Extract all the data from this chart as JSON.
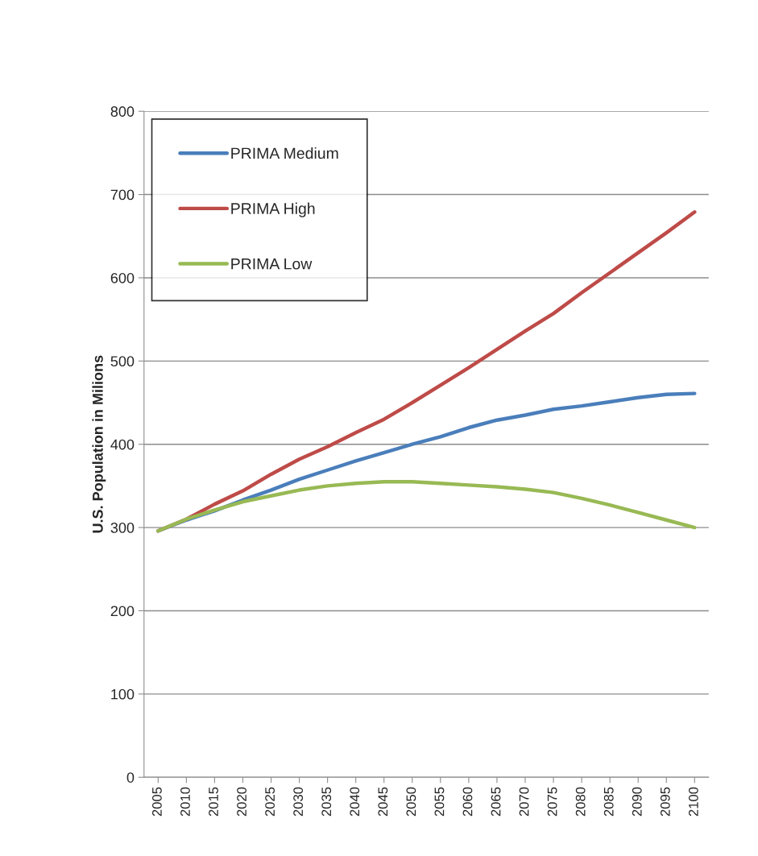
{
  "chart_data": {
    "type": "line",
    "ylabel": "U.S. Population in Milions",
    "categories": [
      "2005",
      "2010",
      "2015",
      "2020",
      "2025",
      "2030",
      "2035",
      "2040",
      "2045",
      "2050",
      "2055",
      "2060",
      "2065",
      "2070",
      "2075",
      "2080",
      "2085",
      "2090",
      "2095",
      "2100"
    ],
    "series": [
      {
        "name": "PRIMA Medium",
        "color": "#4a7ebb",
        "values": [
          296,
          309,
          320,
          333,
          345,
          358,
          369,
          380,
          390,
          400,
          409,
          420,
          429,
          435,
          442,
          446,
          451,
          456,
          460,
          461
        ]
      },
      {
        "name": "PRIMA High",
        "color": "#be4b48",
        "values": [
          296,
          310,
          328,
          344,
          364,
          382,
          397,
          414,
          430,
          450,
          471,
          492,
          514,
          536,
          557,
          582,
          606,
          630,
          654,
          679
        ]
      },
      {
        "name": "PRIMA Low",
        "color": "#98b954",
        "values": [
          296,
          310,
          321,
          331,
          338,
          345,
          350,
          353,
          355,
          355,
          353,
          351,
          349,
          346,
          342,
          335,
          327,
          318,
          309,
          300
        ]
      }
    ],
    "ylim": [
      0,
      800
    ],
    "yticks": [
      0,
      100,
      200,
      300,
      400,
      500,
      600,
      700,
      800
    ],
    "grid": "y",
    "legend": "top left",
    "marker": "none",
    "line_style": "solid"
  }
}
